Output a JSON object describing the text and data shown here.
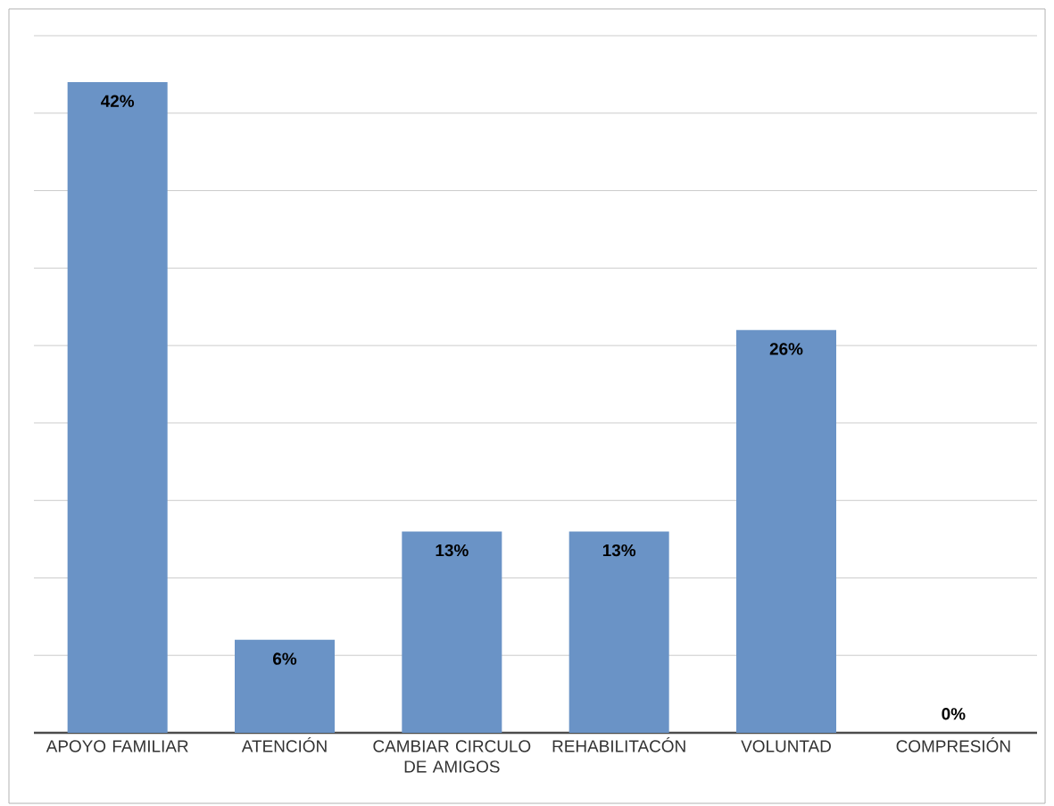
{
  "chart_data": {
    "type": "bar",
    "categories": [
      "APOYO FAMILIAR",
      "ATENCIÓN",
      "CAMBIAR CIRCULO DE AMIGOS",
      "REHABILITACÓN",
      "VOLUNTAD",
      "COMPRESIÓN"
    ],
    "values": [
      42,
      6,
      13,
      13,
      26,
      0
    ],
    "value_labels": [
      "42%",
      "6%",
      "13%",
      "13%",
      "26%",
      "0%"
    ],
    "color": "#6a93c6",
    "ylim": [
      0,
      45
    ],
    "yticks": [
      {
        "value": 0,
        "label": null
      },
      {
        "value": 5,
        "label": null
      },
      {
        "value": 10,
        "label": null
      },
      {
        "value": 15,
        "label": null
      },
      {
        "value": 20,
        "label": null
      },
      {
        "value": 25,
        "label": null
      },
      {
        "value": 30,
        "label": null
      },
      {
        "value": 35,
        "label": null
      },
      {
        "value": 40,
        "label": null
      },
      {
        "value": 45,
        "label": null
      }
    ],
    "grid": "y",
    "tick_labels": "x"
  }
}
